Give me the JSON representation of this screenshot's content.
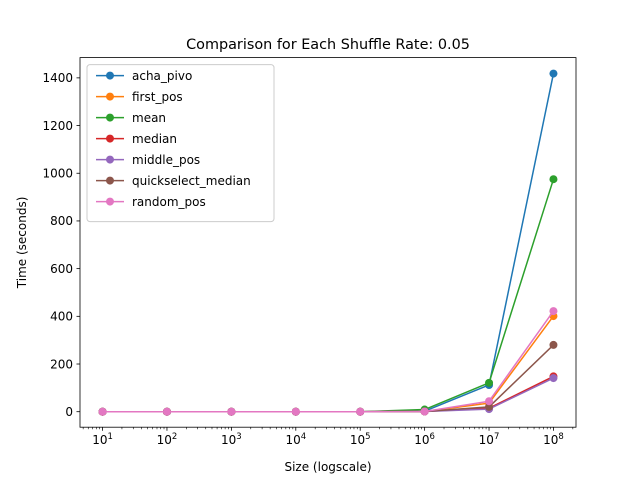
{
  "chart_data": {
    "type": "line",
    "title": "Comparison for Each Shuffle Rate: 0.05",
    "xlabel": "Size (logscale)",
    "ylabel": "Time (seconds)",
    "x_scale": "log",
    "x": [
      10,
      100,
      1000,
      10000,
      100000,
      1000000,
      10000000,
      100000000
    ],
    "x_tick_labels": [
      {
        "base": "10",
        "exp": "1"
      },
      {
        "base": "10",
        "exp": "2"
      },
      {
        "base": "10",
        "exp": "3"
      },
      {
        "base": "10",
        "exp": "4"
      },
      {
        "base": "10",
        "exp": "5"
      },
      {
        "base": "10",
        "exp": "6"
      },
      {
        "base": "10",
        "exp": "7"
      },
      {
        "base": "10",
        "exp": "8"
      }
    ],
    "ylim": [
      -65,
      1485
    ],
    "y_ticks": [
      0,
      200,
      400,
      600,
      800,
      1000,
      1200,
      1400
    ],
    "grid": false,
    "legend_position": "top-left",
    "series": [
      {
        "name": "acha_pivo",
        "color": "#1f77b4",
        "values": [
          0,
          0,
          0,
          0,
          0,
          2,
          112,
          1418
        ]
      },
      {
        "name": "first_pos",
        "color": "#ff7f0e",
        "values": [
          0,
          0,
          0,
          0,
          0,
          1,
          36,
          401
        ]
      },
      {
        "name": "mean",
        "color": "#2ca02c",
        "values": [
          0,
          0,
          0,
          0,
          0,
          9,
          121,
          975
        ]
      },
      {
        "name": "median",
        "color": "#d62728",
        "values": [
          0,
          0,
          0,
          0,
          0,
          1,
          15,
          148
        ]
      },
      {
        "name": "middle_pos",
        "color": "#9467bd",
        "values": [
          0,
          0,
          0,
          0,
          0,
          1,
          11,
          141
        ]
      },
      {
        "name": "quickselect_median",
        "color": "#8c564b",
        "values": [
          0,
          0,
          0,
          0,
          0,
          1,
          20,
          280
        ]
      },
      {
        "name": "random_pos",
        "color": "#e377c2",
        "values": [
          0,
          0,
          0,
          0,
          0,
          1,
          44,
          422
        ]
      }
    ]
  }
}
